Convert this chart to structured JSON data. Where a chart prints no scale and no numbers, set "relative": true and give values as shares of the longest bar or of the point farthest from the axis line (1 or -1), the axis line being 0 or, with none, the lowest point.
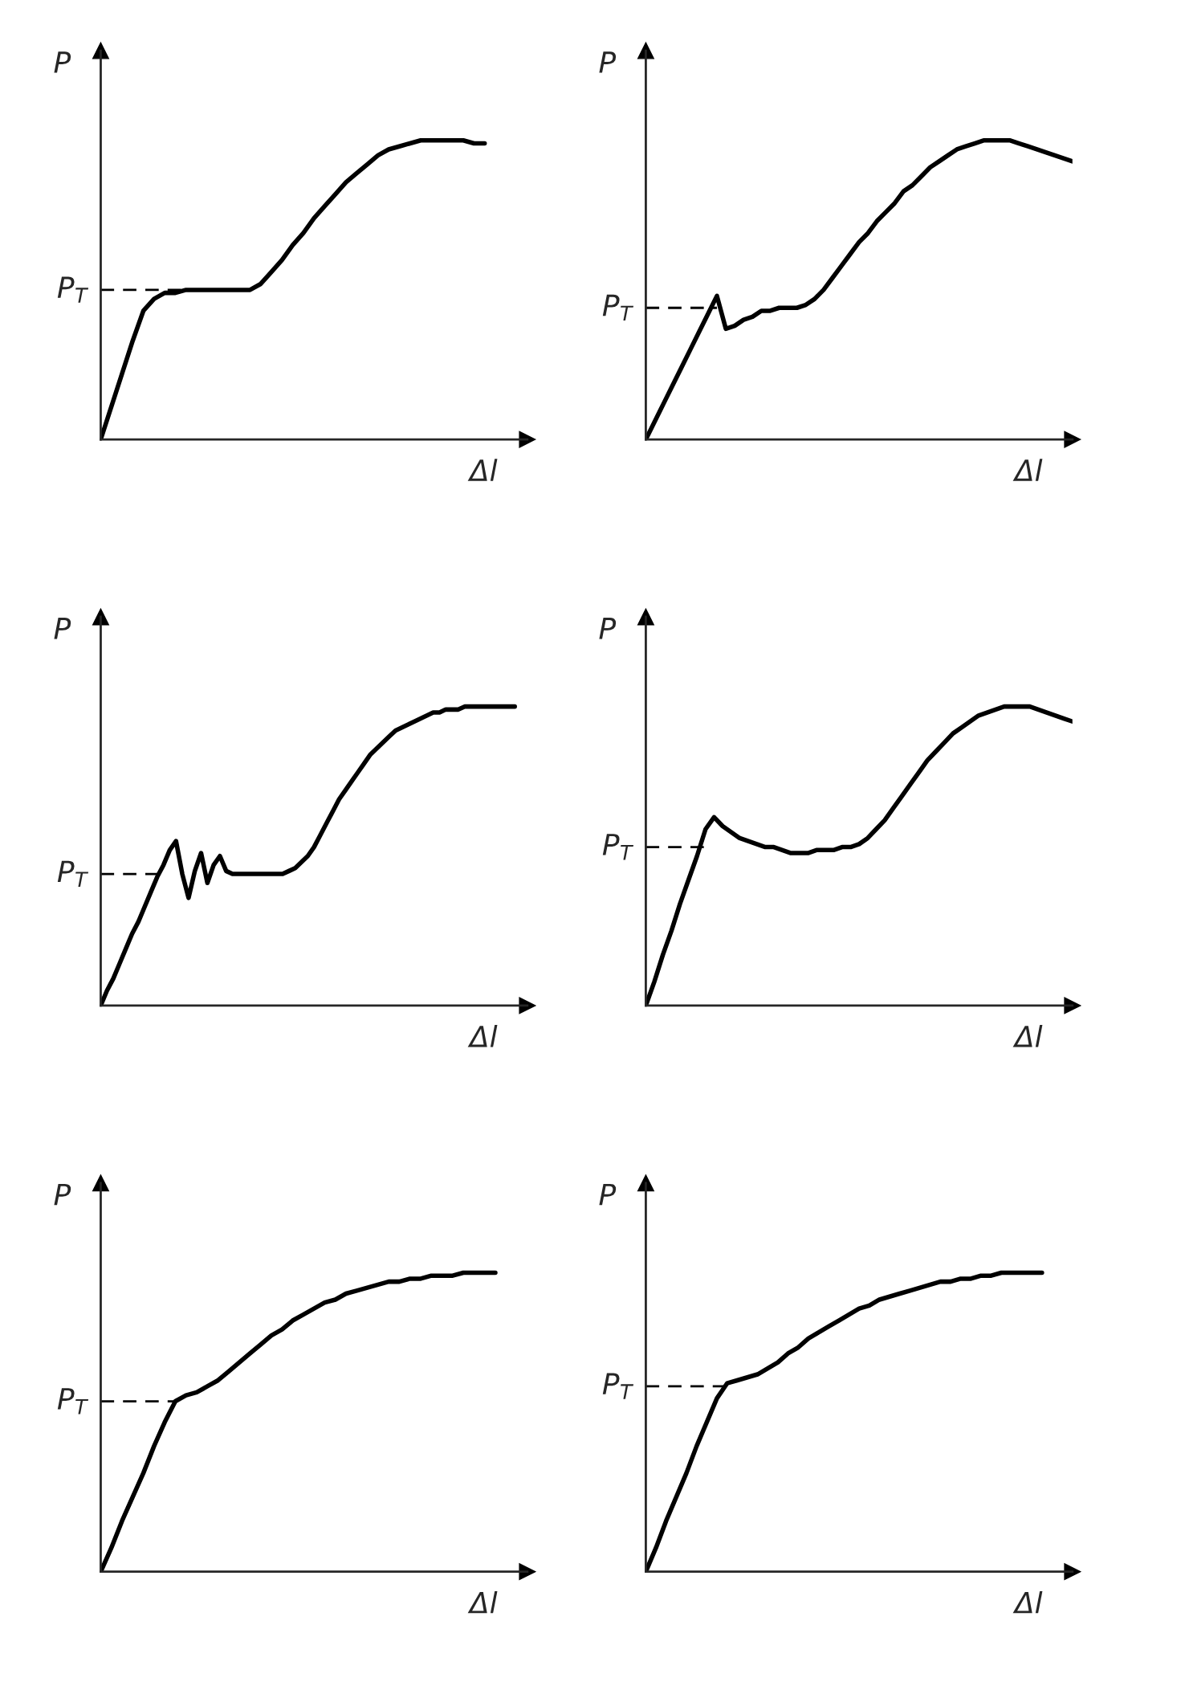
{
  "chart_data": [
    {
      "type": "line",
      "relative": true,
      "xlabel": "Δl",
      "ylabel": "P",
      "categories": [
        null,
        null,
        null,
        null,
        null,
        null,
        null,
        null,
        null,
        null,
        null,
        null,
        null,
        null,
        null,
        null,
        null,
        null,
        null,
        null,
        null,
        null,
        null,
        null,
        null,
        null,
        null,
        null,
        null,
        null,
        null,
        null,
        null,
        null,
        null,
        null,
        null,
        null,
        null,
        null,
        null
      ],
      "series": [
        {
          "color": "#000000",
          "values": [
            0,
            0.11,
            0.22,
            0.33,
            0.43,
            0.47,
            0.49,
            0.49,
            0.5,
            0.5,
            0.5,
            0.5,
            0.5,
            0.5,
            0.5,
            0.52,
            0.56,
            0.6,
            0.65,
            0.69,
            0.74,
            0.78,
            0.82,
            0.86,
            0.89,
            0.92,
            0.95,
            0.97,
            0.98,
            0.99,
            1,
            1,
            1,
            1,
            1,
            0.99,
            0.99,
            null,
            null,
            null,
            null
          ]
        }
      ],
      "ref_lines": [
        {
          "axis": "y",
          "value": 0.5,
          "label": "P$_{T}$",
          "line_style": "dashed"
        }
      ]
    },
    {
      "type": "line",
      "relative": true,
      "xlabel": "Δl",
      "ylabel": "P",
      "categories": [
        null,
        null,
        null,
        null,
        null,
        null,
        null,
        null,
        null,
        null,
        null,
        null,
        null,
        null,
        null,
        null,
        null,
        null,
        null,
        null,
        null,
        null,
        null,
        null,
        null,
        null,
        null,
        null,
        null,
        null,
        null,
        null,
        null,
        null,
        null,
        null,
        null,
        null,
        null,
        null,
        null,
        null,
        null,
        null,
        null,
        null,
        null,
        null,
        null
      ],
      "series": [
        {
          "color": "#000000",
          "values": [
            0,
            0.06,
            0.12,
            0.18,
            0.24,
            0.3,
            0.36,
            0.42,
            0.48,
            0.37,
            0.38,
            0.4,
            0.41,
            0.43,
            0.43,
            0.44,
            0.44,
            0.44,
            0.45,
            0.47,
            0.5,
            0.54,
            0.58,
            0.62,
            0.66,
            0.69,
            0.73,
            0.76,
            0.79,
            0.83,
            0.85,
            0.88,
            0.91,
            0.93,
            0.95,
            0.97,
            0.98,
            0.99,
            1,
            1,
            1,
            1,
            0.99,
            0.98,
            0.97,
            0.96,
            0.95,
            0.94,
            0.93
          ]
        }
      ],
      "ref_lines": [
        {
          "axis": "y",
          "value": 0.44,
          "label": "P$_{T}$",
          "line_style": "dashed"
        }
      ]
    },
    {
      "type": "line",
      "relative": true,
      "xlabel": "Δl",
      "ylabel": "P",
      "categories": [
        null,
        null,
        null,
        null,
        null,
        null,
        null,
        null,
        null,
        null,
        null,
        null,
        null,
        null,
        null,
        null,
        null,
        null,
        null,
        null,
        null,
        null,
        null,
        null,
        null,
        null,
        null,
        null,
        null,
        null,
        null,
        null,
        null,
        null,
        null,
        null,
        null,
        null,
        null,
        null,
        null,
        null,
        null,
        null,
        null,
        null,
        null,
        null,
        null,
        null,
        null,
        null,
        null,
        null,
        null,
        null,
        null,
        null,
        null,
        null,
        null,
        null,
        null,
        null,
        null,
        null,
        null,
        null,
        null
      ],
      "series": [
        {
          "color": "#000000",
          "values": [
            0,
            0.05,
            0.09,
            0.14,
            0.19,
            0.24,
            0.28,
            0.33,
            0.38,
            0.43,
            0.47,
            0.52,
            0.55,
            0.44,
            0.36,
            0.45,
            0.51,
            0.41,
            0.47,
            0.5,
            0.45,
            0.44,
            0.44,
            0.44,
            0.44,
            0.44,
            0.44,
            0.44,
            0.44,
            0.44,
            0.45,
            0.46,
            0.48,
            0.5,
            0.53,
            0.57,
            0.61,
            0.65,
            0.69,
            0.72,
            0.75,
            0.78,
            0.81,
            0.84,
            0.86,
            0.88,
            0.9,
            0.92,
            0.93,
            0.94,
            0.95,
            0.96,
            0.97,
            0.98,
            0.98,
            0.99,
            0.99,
            0.99,
            1,
            1,
            1,
            1,
            1,
            1,
            1,
            1,
            1,
            null,
            null
          ]
        }
      ],
      "ref_lines": [
        {
          "axis": "y",
          "value": 0.44,
          "label": "P$_{T}$",
          "line_style": "dashed"
        }
      ]
    },
    {
      "type": "line",
      "relative": true,
      "xlabel": "Δl",
      "ylabel": "P",
      "categories": [
        null,
        null,
        null,
        null,
        null,
        null,
        null,
        null,
        null,
        null,
        null,
        null,
        null,
        null,
        null,
        null,
        null,
        null,
        null,
        null,
        null,
        null,
        null,
        null,
        null,
        null,
        null,
        null,
        null,
        null,
        null,
        null,
        null,
        null,
        null,
        null,
        null,
        null,
        null,
        null,
        null,
        null,
        null,
        null,
        null,
        null,
        null,
        null,
        null,
        null,
        null
      ],
      "series": [
        {
          "color": "#000000",
          "values": [
            0,
            0.08,
            0.17,
            0.25,
            0.34,
            0.42,
            0.5,
            0.59,
            0.63,
            0.6,
            0.58,
            0.56,
            0.55,
            0.54,
            0.53,
            0.53,
            0.52,
            0.51,
            0.51,
            0.51,
            0.52,
            0.52,
            0.52,
            0.53,
            0.53,
            0.54,
            0.56,
            0.59,
            0.62,
            0.66,
            0.7,
            0.74,
            0.78,
            0.82,
            0.85,
            0.88,
            0.91,
            0.93,
            0.95,
            0.97,
            0.98,
            0.99,
            1,
            1,
            1,
            1,
            0.99,
            0.98,
            0.97,
            0.96,
            0.95
          ]
        }
      ],
      "ref_lines": [
        {
          "axis": "y",
          "value": 0.53,
          "label": "P$_{T}$",
          "line_style": "dashed"
        }
      ]
    },
    {
      "type": "line",
      "relative": true,
      "xlabel": "Δl",
      "ylabel": "P",
      "categories": [
        null,
        null,
        null,
        null,
        null,
        null,
        null,
        null,
        null,
        null,
        null,
        null,
        null,
        null,
        null,
        null,
        null,
        null,
        null,
        null,
        null,
        null,
        null,
        null,
        null,
        null,
        null,
        null,
        null,
        null,
        null,
        null,
        null,
        null,
        null,
        null,
        null,
        null,
        null,
        null,
        null
      ],
      "series": [
        {
          "color": "#000000",
          "values": [
            0,
            0.08,
            0.17,
            0.25,
            0.33,
            0.42,
            0.5,
            0.57,
            0.59,
            0.6,
            0.62,
            0.64,
            0.67,
            0.7,
            0.73,
            0.76,
            0.79,
            0.81,
            0.84,
            0.86,
            0.88,
            0.9,
            0.91,
            0.93,
            0.94,
            0.95,
            0.96,
            0.97,
            0.97,
            0.98,
            0.98,
            0.99,
            0.99,
            0.99,
            1,
            1,
            1,
            1,
            null,
            null,
            null
          ]
        }
      ],
      "ref_lines": [
        {
          "axis": "y",
          "value": 0.57,
          "label": "P$_{T}$",
          "line_style": "dashed"
        }
      ]
    },
    {
      "type": "line",
      "relative": true,
      "xlabel": "Δl",
      "ylabel": "P",
      "categories": [
        null,
        null,
        null,
        null,
        null,
        null,
        null,
        null,
        null,
        null,
        null,
        null,
        null,
        null,
        null,
        null,
        null,
        null,
        null,
        null,
        null,
        null,
        null,
        null,
        null,
        null,
        null,
        null,
        null,
        null,
        null,
        null,
        null,
        null,
        null,
        null,
        null,
        null,
        null,
        null,
        null,
        null,
        null
      ],
      "series": [
        {
          "color": "#000000",
          "values": [
            0,
            0.08,
            0.17,
            0.25,
            0.33,
            0.42,
            0.5,
            0.58,
            0.63,
            0.64,
            0.65,
            0.66,
            0.68,
            0.7,
            0.73,
            0.75,
            0.78,
            0.8,
            0.82,
            0.84,
            0.86,
            0.88,
            0.89,
            0.91,
            0.92,
            0.93,
            0.94,
            0.95,
            0.96,
            0.97,
            0.97,
            0.98,
            0.98,
            0.99,
            0.99,
            1,
            1,
            1,
            1,
            1,
            null,
            null,
            null
          ]
        }
      ],
      "ref_lines": [
        {
          "axis": "y",
          "value": 0.62,
          "label": "P$_{T}$",
          "line_style": "dashed"
        }
      ]
    }
  ]
}
